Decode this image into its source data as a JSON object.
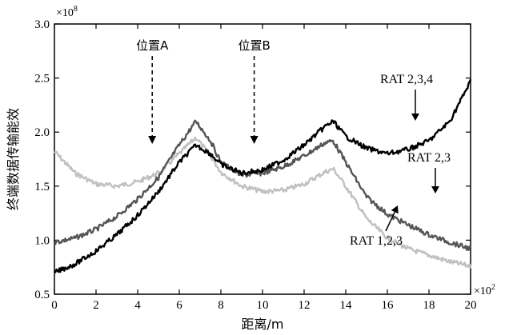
{
  "chart_data": {
    "type": "line",
    "xlabel": "距离/m",
    "ylabel": "终端数据传输能效",
    "x_multiplier": {
      "base": "×10",
      "exp": "2"
    },
    "y_multiplier": {
      "base": "×10",
      "exp": "8"
    },
    "xlim": [
      0,
      20
    ],
    "ylim": [
      0.5,
      3.0
    ],
    "xticks": [
      0,
      2,
      4,
      6,
      8,
      10,
      12,
      14,
      16,
      18,
      20
    ],
    "yticks": [
      0.5,
      1.0,
      1.5,
      2.0,
      2.5,
      3.0
    ],
    "grid": false,
    "colors": {
      "rat123": "#c0c0c0",
      "rat23": "#555555",
      "rat234": "#000000"
    },
    "annotations": [
      {
        "text": "位置A",
        "x": 4.7
      },
      {
        "text": "位置B",
        "x": 9.6
      }
    ],
    "series": [
      {
        "name": "RAT 1,2,3",
        "color_key": "rat123",
        "x": [
          0,
          1,
          2,
          3,
          4,
          5,
          6,
          6.8,
          7.5,
          8,
          9,
          10,
          11,
          12,
          13,
          13.4,
          14,
          15,
          16,
          17,
          18,
          19,
          20
        ],
        "values": [
          1.82,
          1.62,
          1.52,
          1.5,
          1.54,
          1.62,
          1.8,
          1.95,
          1.78,
          1.63,
          1.5,
          1.45,
          1.46,
          1.52,
          1.63,
          1.66,
          1.5,
          1.2,
          1.02,
          0.92,
          0.86,
          0.8,
          0.76
        ]
      },
      {
        "name": "RAT 2,3",
        "color_key": "rat23",
        "x": [
          0,
          1,
          2,
          3,
          4,
          5,
          6,
          6.8,
          7.5,
          8,
          9,
          10,
          11,
          12,
          13,
          13.4,
          14,
          15,
          16,
          17,
          18,
          19,
          20
        ],
        "values": [
          0.98,
          1.02,
          1.1,
          1.22,
          1.38,
          1.58,
          1.88,
          2.1,
          1.92,
          1.72,
          1.6,
          1.62,
          1.68,
          1.78,
          1.9,
          1.92,
          1.72,
          1.4,
          1.24,
          1.14,
          1.05,
          0.98,
          0.92
        ]
      },
      {
        "name": "RAT 2,3,4",
        "color_key": "rat234",
        "x": [
          0,
          1,
          2,
          3,
          4,
          5,
          6,
          6.8,
          7.5,
          8,
          9,
          10,
          11,
          12,
          13,
          13.4,
          14,
          15,
          16,
          17,
          18,
          19,
          20
        ],
        "values": [
          0.7,
          0.78,
          0.9,
          1.05,
          1.23,
          1.45,
          1.72,
          1.88,
          1.8,
          1.7,
          1.62,
          1.65,
          1.74,
          1.88,
          2.05,
          2.1,
          1.96,
          1.85,
          1.8,
          1.84,
          1.92,
          2.1,
          2.47
        ]
      }
    ]
  }
}
